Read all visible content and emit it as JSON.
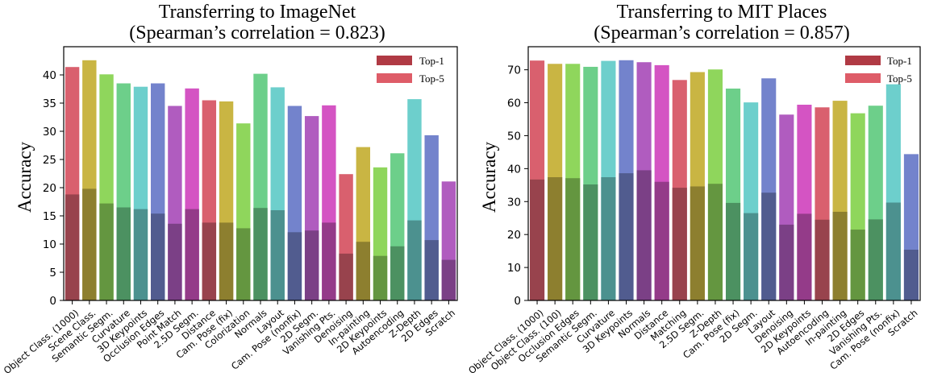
{
  "chart_data": [
    {
      "type": "bar",
      "title": "Transferring to ImageNet",
      "subtitle": "(Spearman’s correlation = 0.823)",
      "xlabel": "",
      "ylabel": "Accuracy",
      "ylim": [
        0,
        45
      ],
      "yticks": [
        0,
        5,
        10,
        15,
        20,
        25,
        30,
        35,
        40
      ],
      "grid": false,
      "legend_position": "top-right",
      "legend": [
        "Top-1",
        "Top-5"
      ],
      "categories": [
        "Object Class. (1000)",
        "Scene Class.",
        "Semantic Segm.",
        "Curvature",
        "3D Keypoints",
        "Occlusion Edges",
        "Point Match",
        "2.5D Segm.",
        "Distance",
        "Cam. Pose (fix)",
        "Colorization",
        "Normals",
        "Layout",
        "Cam. Pose (nonfix)",
        "2D Segm.",
        "Vanishing Pts.",
        "Denoising",
        "In-painting",
        "2D Keypoints",
        "Autoencoding",
        "Z-Depth",
        "2D Edges",
        "Scratch"
      ],
      "colors": [
        "#d9606e",
        "#c9b543",
        "#8fd65c",
        "#6dcf8a",
        "#6dcfcc",
        "#7383cc",
        "#b05cbf",
        "#d454c3",
        "#d9606e",
        "#c9b543",
        "#8fd65c",
        "#6dcf8a",
        "#6dcfcc",
        "#7383cc",
        "#b05cbf",
        "#d454c3",
        "#d9606e",
        "#c9b543",
        "#8fd65c",
        "#6dcf8a",
        "#6dcfcc",
        "#7383cc",
        "#b05cbf"
      ],
      "series": [
        {
          "name": "Top-1",
          "values": [
            18.8,
            19.8,
            17.2,
            16.5,
            16.2,
            15.4,
            13.6,
            16.2,
            13.8,
            13.8,
            12.8,
            16.4,
            16.0,
            12.1,
            12.4,
            13.8,
            8.3,
            10.4,
            7.9,
            9.6,
            14.2,
            10.7,
            7.2
          ]
        },
        {
          "name": "Top-5",
          "values": [
            41.4,
            42.6,
            40.1,
            38.5,
            37.9,
            38.5,
            34.5,
            37.6,
            35.5,
            35.3,
            31.4,
            40.2,
            37.8,
            34.5,
            32.7,
            34.6,
            22.4,
            27.2,
            23.6,
            26.1,
            35.7,
            29.3,
            21.1
          ]
        }
      ]
    },
    {
      "type": "bar",
      "title": "Transferring to MIT Places",
      "subtitle": "(Spearman’s correlation = 0.857)",
      "xlabel": "",
      "ylabel": "Accuracy",
      "ylim": [
        0,
        77
      ],
      "yticks": [
        0,
        10,
        20,
        30,
        40,
        50,
        60,
        70
      ],
      "grid": false,
      "legend_position": "top-right",
      "legend": [
        "Top-1",
        "Top-5"
      ],
      "categories": [
        "Object Class. (1000)",
        "Object Class. (100)",
        "Occlusion Edges",
        "Semantic Segm.",
        "Curvature",
        "3D Keypoints",
        "Normals",
        "Distance",
        "Matching",
        "2.5D Segm.",
        "Z-Depth",
        "Cam. Pose (fix)",
        "2D Segm.",
        "Layout",
        "Denoising",
        "2D Keypoints",
        "Autoencoding",
        "In-painting",
        "2D Edges",
        "Vanishing Pts.",
        "Cam. Pose (nonfix)",
        "Scratch"
      ],
      "colors": [
        "#d9606e",
        "#c9b543",
        "#8fd65c",
        "#6dcf8a",
        "#6dcfcc",
        "#7383cc",
        "#b05cbf",
        "#d454c3",
        "#d9606e",
        "#c9b543",
        "#8fd65c",
        "#6dcf8a",
        "#6dcfcc",
        "#7383cc",
        "#b05cbf",
        "#d454c3",
        "#d9606e",
        "#c9b543",
        "#8fd65c",
        "#6dcf8a",
        "#6dcfcc",
        "#7383cc"
      ],
      "series": [
        {
          "name": "Top-1",
          "values": [
            36.7,
            37.4,
            37.1,
            35.2,
            37.4,
            38.6,
            39.5,
            36.0,
            34.2,
            34.6,
            35.4,
            29.6,
            26.5,
            32.7,
            23.0,
            26.3,
            24.5,
            26.9,
            21.5,
            24.6,
            29.7,
            15.4
          ]
        },
        {
          "name": "Top-5",
          "values": [
            72.8,
            71.8,
            71.8,
            70.9,
            72.7,
            72.9,
            72.3,
            71.4,
            66.9,
            69.3,
            70.1,
            64.3,
            60.1,
            67.4,
            56.4,
            59.4,
            58.6,
            60.6,
            56.8,
            59.1,
            65.6,
            44.4
          ]
        }
      ]
    }
  ]
}
